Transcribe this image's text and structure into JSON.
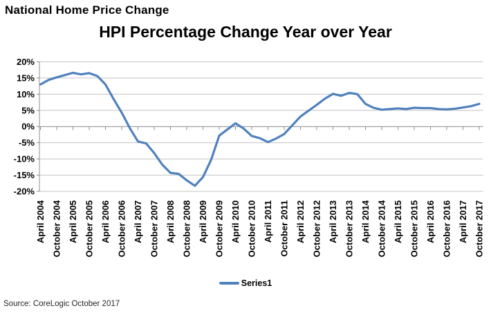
{
  "page": {
    "heading": "National Home Price Change",
    "source": "Source: CoreLogic October 2017"
  },
  "chart": {
    "title": "HPI Percentage Change Year over Year",
    "legend": {
      "series_label": "Series1"
    },
    "colors": {
      "line": "#4F81BD",
      "gridline": "#C3C3C3",
      "axis": "#8C8C8C",
      "text": "#000000"
    }
  },
  "chart_data": {
    "type": "line",
    "title": "HPI Percentage Change Year over Year",
    "xlabel": "",
    "ylabel": "",
    "ylim": [
      -20,
      20
    ],
    "grid": true,
    "legend_position": "bottom",
    "y_ticks": [
      20,
      15,
      10,
      5,
      0,
      -5,
      -10,
      -15,
      -20
    ],
    "y_tick_labels": [
      "20%",
      "15%",
      "10%",
      "5%",
      "0%",
      "-5%",
      "-10%",
      "-15%",
      "-20%"
    ],
    "x_tick_labels": [
      "April 2004",
      "October 2004",
      "April 2005",
      "October 2005",
      "April 2006",
      "October 2006",
      "April 2007",
      "October 2007",
      "April 2008",
      "October 2008",
      "April 2009",
      "October 2009",
      "April 2010",
      "October 2010",
      "April 2011",
      "October 2011",
      "April 2012",
      "October 2012",
      "April 2013",
      "October 2013",
      "April 2014",
      "October 2014",
      "April 2015",
      "October 2015",
      "April 2016",
      "October 2016",
      "April 2017",
      "October 2017"
    ],
    "series": [
      {
        "name": "Series1",
        "x": [
          "2004-04",
          "2004-07",
          "2004-10",
          "2005-01",
          "2005-04",
          "2005-07",
          "2005-10",
          "2006-01",
          "2006-04",
          "2006-07",
          "2006-10",
          "2007-01",
          "2007-04",
          "2007-07",
          "2007-10",
          "2008-01",
          "2008-04",
          "2008-07",
          "2008-10",
          "2009-01",
          "2009-04",
          "2009-07",
          "2009-10",
          "2010-01",
          "2010-04",
          "2010-07",
          "2010-10",
          "2011-01",
          "2011-04",
          "2011-07",
          "2011-10",
          "2012-01",
          "2012-04",
          "2012-07",
          "2012-10",
          "2013-01",
          "2013-04",
          "2013-07",
          "2013-10",
          "2014-01",
          "2014-04",
          "2014-07",
          "2014-10",
          "2015-01",
          "2015-04",
          "2015-07",
          "2015-10",
          "2016-01",
          "2016-04",
          "2016-07",
          "2016-10",
          "2017-01",
          "2017-04",
          "2017-07",
          "2017-10"
        ],
        "values": [
          13.0,
          14.4,
          15.2,
          15.9,
          16.6,
          16.1,
          16.5,
          15.6,
          13.0,
          8.5,
          4.3,
          -0.5,
          -4.6,
          -5.2,
          -8.2,
          -11.8,
          -14.3,
          -14.6,
          -16.6,
          -18.3,
          -15.6,
          -10.3,
          -2.8,
          -0.9,
          1.0,
          -0.6,
          -2.9,
          -3.6,
          -4.8,
          -3.7,
          -2.3,
          0.4,
          3.1,
          4.9,
          6.7,
          8.6,
          10.1,
          9.5,
          10.4,
          10.0,
          7.0,
          5.8,
          5.2,
          5.4,
          5.6,
          5.4,
          5.8,
          5.7,
          5.7,
          5.4,
          5.3,
          5.5,
          5.9,
          6.3,
          7.0
        ]
      }
    ]
  }
}
